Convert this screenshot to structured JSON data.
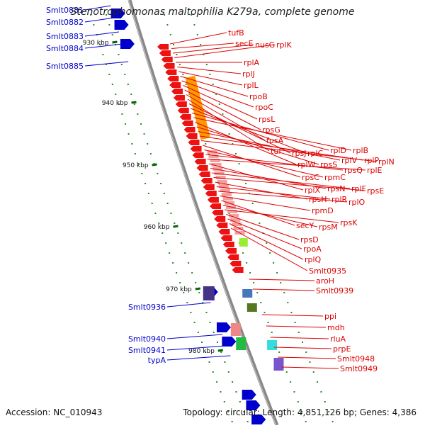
{
  "title": "Stenotrophomonas maltophilia K279a, complete genome",
  "footer": {
    "accession": "Accession: NC_010943",
    "topology": "Topology: circular; Length: 4,851,126 bp; Genes: 4,386"
  },
  "scale_ticks": [
    "930 kbp",
    "940 kbp",
    "950 kbp",
    "960 kbp",
    "970 kbp",
    "980 kbp"
  ],
  "genes_left": [
    "Smlt0881",
    "Smlt0882",
    "Smlt0883",
    "Smlt0884",
    "Smlt0885",
    "Smlt0936",
    "Smlt0940",
    "Smlt0941",
    "typA"
  ],
  "genes_right": [
    "tufB",
    "secE",
    "nusG",
    "rplK",
    "rplA",
    "rplJ",
    "rplL",
    "rpoB",
    "rpoC",
    "rpsL",
    "rpsG",
    "fusA",
    "tuf",
    "rpsJ",
    "rplC",
    "rplD",
    "rplB",
    "rplW",
    "rpsS",
    "rplV",
    "rplP",
    "rplN",
    "rpsC",
    "rpmC",
    "rpsQ",
    "rplE",
    "rplX",
    "rpsN",
    "rplF",
    "rpsE",
    "rpsH",
    "rplR",
    "rplO",
    "rpmD",
    "secY",
    "rpsM",
    "rpsK",
    "rpsD",
    "rpoA",
    "rplQ",
    "Smlt0935",
    "aroH",
    "Smlt0939",
    "ppi",
    "mdh",
    "rluA",
    "prpE",
    "Smlt0948",
    "Smlt0949"
  ],
  "colors": {
    "forward": "#0000cc",
    "reverse": "#ee1111",
    "backbone": "#888888",
    "tick": "#006600",
    "label_left": "#0000cc",
    "label_right": "#dd0000"
  }
}
